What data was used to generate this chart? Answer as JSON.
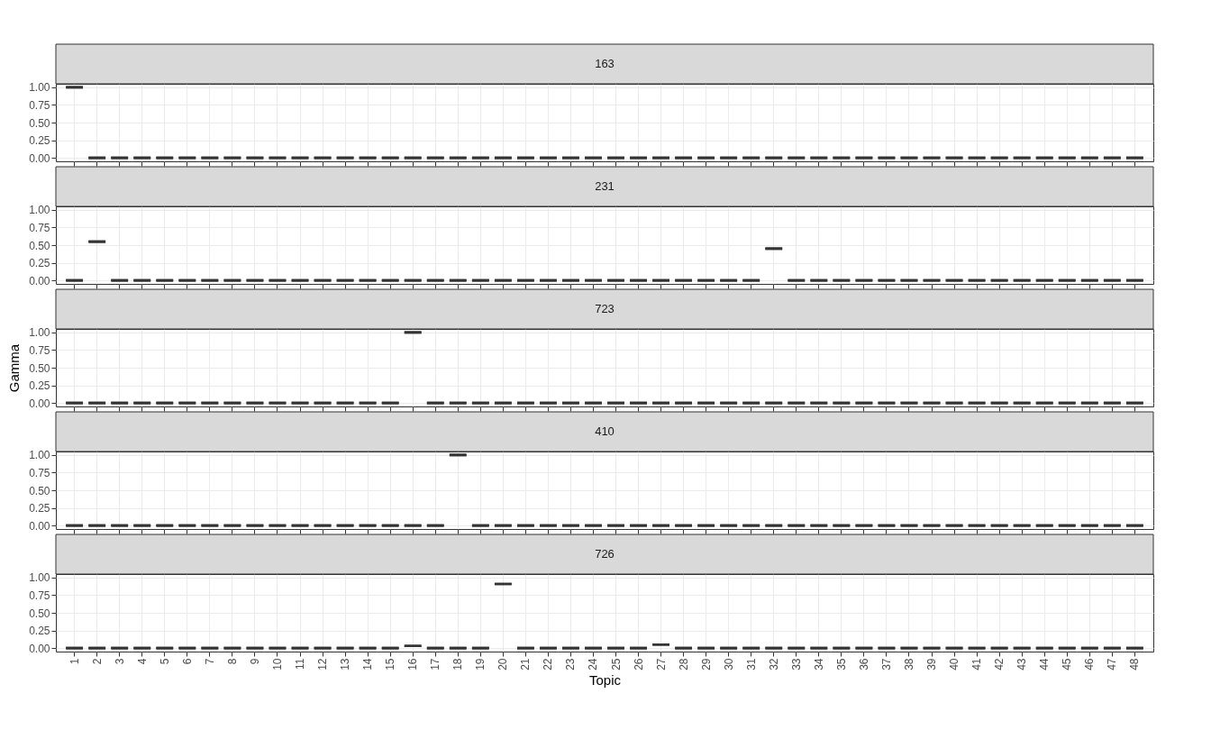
{
  "chart_data": [
    {
      "type": "box",
      "title": "163",
      "categories": [
        "1",
        "2",
        "3",
        "4",
        "5",
        "6",
        "7",
        "8",
        "9",
        "10",
        "11",
        "12",
        "13",
        "14",
        "15",
        "16",
        "17",
        "18",
        "19",
        "20",
        "21",
        "22",
        "23",
        "24",
        "25",
        "26",
        "27",
        "28",
        "29",
        "30",
        "31",
        "32",
        "33",
        "34",
        "35",
        "36",
        "37",
        "38",
        "39",
        "40",
        "41",
        "42",
        "43",
        "44",
        "45",
        "46",
        "47",
        "48"
      ],
      "ylim": [
        -0.05,
        1.05
      ],
      "yticks": [
        {
          "value": 0,
          "label": "0.00"
        },
        {
          "value": 0.25,
          "label": "0.25"
        },
        {
          "value": 0.5,
          "label": "0.50"
        },
        {
          "value": 0.75,
          "label": "0.75"
        },
        {
          "value": 1,
          "label": "1.00"
        }
      ],
      "grid": true,
      "tick_labels": "y",
      "boxes": [
        {
          "low": 1,
          "q1": 1,
          "median": 1,
          "q3": 1,
          "high": 1
        },
        {
          "low": 0,
          "q1": 0,
          "median": 0,
          "q3": 0,
          "high": 0
        },
        {
          "low": 0,
          "q1": 0,
          "median": 0,
          "q3": 0,
          "high": 0
        },
        {
          "low": 0,
          "q1": 0,
          "median": 0,
          "q3": 0,
          "high": 0
        },
        {
          "low": 0,
          "q1": 0,
          "median": 0,
          "q3": 0,
          "high": 0
        },
        {
          "low": 0,
          "q1": 0,
          "median": 0,
          "q3": 0,
          "high": 0
        },
        {
          "low": 0,
          "q1": 0,
          "median": 0,
          "q3": 0,
          "high": 0
        },
        {
          "low": 0,
          "q1": 0,
          "median": 0,
          "q3": 0,
          "high": 0
        },
        {
          "low": 0,
          "q1": 0,
          "median": 0,
          "q3": 0,
          "high": 0
        },
        {
          "low": 0,
          "q1": 0,
          "median": 0,
          "q3": 0,
          "high": 0
        },
        {
          "low": 0,
          "q1": 0,
          "median": 0,
          "q3": 0,
          "high": 0
        },
        {
          "low": 0,
          "q1": 0,
          "median": 0,
          "q3": 0,
          "high": 0
        },
        {
          "low": 0,
          "q1": 0,
          "median": 0,
          "q3": 0,
          "high": 0
        },
        {
          "low": 0,
          "q1": 0,
          "median": 0,
          "q3": 0,
          "high": 0
        },
        {
          "low": 0,
          "q1": 0,
          "median": 0,
          "q3": 0,
          "high": 0
        },
        {
          "low": 0,
          "q1": 0,
          "median": 0,
          "q3": 0,
          "high": 0
        },
        {
          "low": 0,
          "q1": 0,
          "median": 0,
          "q3": 0,
          "high": 0
        },
        {
          "low": 0,
          "q1": 0,
          "median": 0,
          "q3": 0,
          "high": 0
        },
        {
          "low": 0,
          "q1": 0,
          "median": 0,
          "q3": 0,
          "high": 0
        },
        {
          "low": 0,
          "q1": 0,
          "median": 0,
          "q3": 0,
          "high": 0
        },
        {
          "low": 0,
          "q1": 0,
          "median": 0,
          "q3": 0,
          "high": 0
        },
        {
          "low": 0,
          "q1": 0,
          "median": 0,
          "q3": 0,
          "high": 0
        },
        {
          "low": 0,
          "q1": 0,
          "median": 0,
          "q3": 0,
          "high": 0
        },
        {
          "low": 0,
          "q1": 0,
          "median": 0,
          "q3": 0,
          "high": 0
        },
        {
          "low": 0,
          "q1": 0,
          "median": 0,
          "q3": 0,
          "high": 0
        },
        {
          "low": 0,
          "q1": 0,
          "median": 0,
          "q3": 0,
          "high": 0
        },
        {
          "low": 0,
          "q1": 0,
          "median": 0,
          "q3": 0,
          "high": 0
        },
        {
          "low": 0,
          "q1": 0,
          "median": 0,
          "q3": 0,
          "high": 0
        },
        {
          "low": 0,
          "q1": 0,
          "median": 0,
          "q3": 0,
          "high": 0
        },
        {
          "low": 0,
          "q1": 0,
          "median": 0,
          "q3": 0,
          "high": 0
        },
        {
          "low": 0,
          "q1": 0,
          "median": 0,
          "q3": 0,
          "high": 0
        },
        {
          "low": 0,
          "q1": 0,
          "median": 0,
          "q3": 0,
          "high": 0
        },
        {
          "low": 0,
          "q1": 0,
          "median": 0,
          "q3": 0,
          "high": 0
        },
        {
          "low": 0,
          "q1": 0,
          "median": 0,
          "q3": 0,
          "high": 0
        },
        {
          "low": 0,
          "q1": 0,
          "median": 0,
          "q3": 0,
          "high": 0
        },
        {
          "low": 0,
          "q1": 0,
          "median": 0,
          "q3": 0,
          "high": 0
        },
        {
          "low": 0,
          "q1": 0,
          "median": 0,
          "q3": 0,
          "high": 0
        },
        {
          "low": 0,
          "q1": 0,
          "median": 0,
          "q3": 0,
          "high": 0
        },
        {
          "low": 0,
          "q1": 0,
          "median": 0,
          "q3": 0,
          "high": 0
        },
        {
          "low": 0,
          "q1": 0,
          "median": 0,
          "q3": 0,
          "high": 0
        },
        {
          "low": 0,
          "q1": 0,
          "median": 0,
          "q3": 0,
          "high": 0
        },
        {
          "low": 0,
          "q1": 0,
          "median": 0,
          "q3": 0,
          "high": 0
        },
        {
          "low": 0,
          "q1": 0,
          "median": 0,
          "q3": 0,
          "high": 0
        },
        {
          "low": 0,
          "q1": 0,
          "median": 0,
          "q3": 0,
          "high": 0
        },
        {
          "low": 0,
          "q1": 0,
          "median": 0,
          "q3": 0,
          "high": 0
        },
        {
          "low": 0,
          "q1": 0,
          "median": 0,
          "q3": 0,
          "high": 0
        },
        {
          "low": 0,
          "q1": 0,
          "median": 0,
          "q3": 0,
          "high": 0
        },
        {
          "low": 0,
          "q1": 0,
          "median": 0,
          "q3": 0,
          "high": 0
        }
      ]
    },
    {
      "type": "box",
      "title": "231",
      "categories": [
        "1",
        "2",
        "3",
        "4",
        "5",
        "6",
        "7",
        "8",
        "9",
        "10",
        "11",
        "12",
        "13",
        "14",
        "15",
        "16",
        "17",
        "18",
        "19",
        "20",
        "21",
        "22",
        "23",
        "24",
        "25",
        "26",
        "27",
        "28",
        "29",
        "30",
        "31",
        "32",
        "33",
        "34",
        "35",
        "36",
        "37",
        "38",
        "39",
        "40",
        "41",
        "42",
        "43",
        "44",
        "45",
        "46",
        "47",
        "48"
      ],
      "ylim": [
        -0.05,
        1.05
      ],
      "yticks": [
        {
          "value": 0,
          "label": "0.00"
        },
        {
          "value": 0.25,
          "label": "0.25"
        },
        {
          "value": 0.5,
          "label": "0.50"
        },
        {
          "value": 0.75,
          "label": "0.75"
        },
        {
          "value": 1,
          "label": "1.00"
        }
      ],
      "grid": true,
      "tick_labels": "y",
      "boxes": [
        {
          "low": 0,
          "q1": 0,
          "median": 0,
          "q3": 0,
          "high": 0
        },
        {
          "low": 0.55,
          "q1": 0.55,
          "median": 0.55,
          "q3": 0.55,
          "high": 0.55
        },
        {
          "low": 0,
          "q1": 0,
          "median": 0,
          "q3": 0,
          "high": 0
        },
        {
          "low": 0,
          "q1": 0,
          "median": 0,
          "q3": 0,
          "high": 0
        },
        {
          "low": 0,
          "q1": 0,
          "median": 0,
          "q3": 0,
          "high": 0
        },
        {
          "low": 0,
          "q1": 0,
          "median": 0,
          "q3": 0,
          "high": 0
        },
        {
          "low": 0,
          "q1": 0,
          "median": 0,
          "q3": 0,
          "high": 0
        },
        {
          "low": 0,
          "q1": 0,
          "median": 0,
          "q3": 0,
          "high": 0
        },
        {
          "low": 0,
          "q1": 0,
          "median": 0,
          "q3": 0,
          "high": 0
        },
        {
          "low": 0,
          "q1": 0,
          "median": 0,
          "q3": 0,
          "high": 0
        },
        {
          "low": 0,
          "q1": 0,
          "median": 0,
          "q3": 0,
          "high": 0
        },
        {
          "low": 0,
          "q1": 0,
          "median": 0,
          "q3": 0,
          "high": 0
        },
        {
          "low": 0,
          "q1": 0,
          "median": 0,
          "q3": 0,
          "high": 0
        },
        {
          "low": 0,
          "q1": 0,
          "median": 0,
          "q3": 0,
          "high": 0
        },
        {
          "low": 0,
          "q1": 0,
          "median": 0,
          "q3": 0,
          "high": 0
        },
        {
          "low": 0,
          "q1": 0,
          "median": 0,
          "q3": 0,
          "high": 0
        },
        {
          "low": 0,
          "q1": 0,
          "median": 0,
          "q3": 0,
          "high": 0
        },
        {
          "low": 0,
          "q1": 0,
          "median": 0,
          "q3": 0,
          "high": 0
        },
        {
          "low": 0,
          "q1": 0,
          "median": 0,
          "q3": 0,
          "high": 0
        },
        {
          "low": 0,
          "q1": 0,
          "median": 0,
          "q3": 0,
          "high": 0
        },
        {
          "low": 0,
          "q1": 0,
          "median": 0,
          "q3": 0,
          "high": 0
        },
        {
          "low": 0,
          "q1": 0,
          "median": 0,
          "q3": 0,
          "high": 0
        },
        {
          "low": 0,
          "q1": 0,
          "median": 0,
          "q3": 0,
          "high": 0
        },
        {
          "low": 0,
          "q1": 0,
          "median": 0,
          "q3": 0,
          "high": 0
        },
        {
          "low": 0,
          "q1": 0,
          "median": 0,
          "q3": 0,
          "high": 0
        },
        {
          "low": 0,
          "q1": 0,
          "median": 0,
          "q3": 0,
          "high": 0
        },
        {
          "low": 0,
          "q1": 0,
          "median": 0,
          "q3": 0,
          "high": 0
        },
        {
          "low": 0,
          "q1": 0,
          "median": 0,
          "q3": 0,
          "high": 0
        },
        {
          "low": 0,
          "q1": 0,
          "median": 0,
          "q3": 0,
          "high": 0
        },
        {
          "low": 0,
          "q1": 0,
          "median": 0,
          "q3": 0,
          "high": 0
        },
        {
          "low": 0,
          "q1": 0,
          "median": 0,
          "q3": 0,
          "high": 0
        },
        {
          "low": 0.45,
          "q1": 0.45,
          "median": 0.45,
          "q3": 0.45,
          "high": 0.45
        },
        {
          "low": 0,
          "q1": 0,
          "median": 0,
          "q3": 0,
          "high": 0
        },
        {
          "low": 0,
          "q1": 0,
          "median": 0,
          "q3": 0,
          "high": 0
        },
        {
          "low": 0,
          "q1": 0,
          "median": 0,
          "q3": 0,
          "high": 0
        },
        {
          "low": 0,
          "q1": 0,
          "median": 0,
          "q3": 0,
          "high": 0
        },
        {
          "low": 0,
          "q1": 0,
          "median": 0,
          "q3": 0,
          "high": 0
        },
        {
          "low": 0,
          "q1": 0,
          "median": 0,
          "q3": 0,
          "high": 0
        },
        {
          "low": 0,
          "q1": 0,
          "median": 0,
          "q3": 0,
          "high": 0
        },
        {
          "low": 0,
          "q1": 0,
          "median": 0,
          "q3": 0,
          "high": 0
        },
        {
          "low": 0,
          "q1": 0,
          "median": 0,
          "q3": 0,
          "high": 0
        },
        {
          "low": 0,
          "q1": 0,
          "median": 0,
          "q3": 0,
          "high": 0
        },
        {
          "low": 0,
          "q1": 0,
          "median": 0,
          "q3": 0,
          "high": 0
        },
        {
          "low": 0,
          "q1": 0,
          "median": 0,
          "q3": 0,
          "high": 0
        },
        {
          "low": 0,
          "q1": 0,
          "median": 0,
          "q3": 0,
          "high": 0
        },
        {
          "low": 0,
          "q1": 0,
          "median": 0,
          "q3": 0,
          "high": 0
        },
        {
          "low": 0,
          "q1": 0,
          "median": 0,
          "q3": 0,
          "high": 0
        },
        {
          "low": 0,
          "q1": 0,
          "median": 0,
          "q3": 0,
          "high": 0
        }
      ]
    },
    {
      "type": "box",
      "title": "723",
      "ylabel": "Gamma",
      "categories": [
        "1",
        "2",
        "3",
        "4",
        "5",
        "6",
        "7",
        "8",
        "9",
        "10",
        "11",
        "12",
        "13",
        "14",
        "15",
        "16",
        "17",
        "18",
        "19",
        "20",
        "21",
        "22",
        "23",
        "24",
        "25",
        "26",
        "27",
        "28",
        "29",
        "30",
        "31",
        "32",
        "33",
        "34",
        "35",
        "36",
        "37",
        "38",
        "39",
        "40",
        "41",
        "42",
        "43",
        "44",
        "45",
        "46",
        "47",
        "48"
      ],
      "ylim": [
        -0.05,
        1.05
      ],
      "yticks": [
        {
          "value": 0,
          "label": "0.00"
        },
        {
          "value": 0.25,
          "label": "0.25"
        },
        {
          "value": 0.5,
          "label": "0.50"
        },
        {
          "value": 0.75,
          "label": "0.75"
        },
        {
          "value": 1,
          "label": "1.00"
        }
      ],
      "grid": true,
      "tick_labels": "y",
      "boxes": [
        {
          "low": 0,
          "q1": 0,
          "median": 0,
          "q3": 0,
          "high": 0
        },
        {
          "low": 0,
          "q1": 0,
          "median": 0,
          "q3": 0,
          "high": 0
        },
        {
          "low": 0,
          "q1": 0,
          "median": 0,
          "q3": 0,
          "high": 0
        },
        {
          "low": 0,
          "q1": 0,
          "median": 0,
          "q3": 0,
          "high": 0
        },
        {
          "low": 0,
          "q1": 0,
          "median": 0,
          "q3": 0,
          "high": 0
        },
        {
          "low": 0,
          "q1": 0,
          "median": 0,
          "q3": 0,
          "high": 0
        },
        {
          "low": 0,
          "q1": 0,
          "median": 0,
          "q3": 0,
          "high": 0
        },
        {
          "low": 0,
          "q1": 0,
          "median": 0,
          "q3": 0,
          "high": 0
        },
        {
          "low": 0,
          "q1": 0,
          "median": 0,
          "q3": 0,
          "high": 0
        },
        {
          "low": 0,
          "q1": 0,
          "median": 0,
          "q3": 0,
          "high": 0
        },
        {
          "low": 0,
          "q1": 0,
          "median": 0,
          "q3": 0,
          "high": 0
        },
        {
          "low": 0,
          "q1": 0,
          "median": 0,
          "q3": 0,
          "high": 0
        },
        {
          "low": 0,
          "q1": 0,
          "median": 0,
          "q3": 0,
          "high": 0
        },
        {
          "low": 0,
          "q1": 0,
          "median": 0,
          "q3": 0,
          "high": 0
        },
        {
          "low": 0,
          "q1": 0,
          "median": 0,
          "q3": 0,
          "high": 0
        },
        {
          "low": 1,
          "q1": 1,
          "median": 1,
          "q3": 1,
          "high": 1
        },
        {
          "low": 0,
          "q1": 0,
          "median": 0,
          "q3": 0,
          "high": 0
        },
        {
          "low": 0,
          "q1": 0,
          "median": 0,
          "q3": 0,
          "high": 0
        },
        {
          "low": 0,
          "q1": 0,
          "median": 0,
          "q3": 0,
          "high": 0
        },
        {
          "low": 0,
          "q1": 0,
          "median": 0,
          "q3": 0,
          "high": 0
        },
        {
          "low": 0,
          "q1": 0,
          "median": 0,
          "q3": 0,
          "high": 0
        },
        {
          "low": 0,
          "q1": 0,
          "median": 0,
          "q3": 0,
          "high": 0
        },
        {
          "low": 0,
          "q1": 0,
          "median": 0,
          "q3": 0,
          "high": 0
        },
        {
          "low": 0,
          "q1": 0,
          "median": 0,
          "q3": 0,
          "high": 0
        },
        {
          "low": 0,
          "q1": 0,
          "median": 0,
          "q3": 0,
          "high": 0
        },
        {
          "low": 0,
          "q1": 0,
          "median": 0,
          "q3": 0,
          "high": 0
        },
        {
          "low": 0,
          "q1": 0,
          "median": 0,
          "q3": 0,
          "high": 0
        },
        {
          "low": 0,
          "q1": 0,
          "median": 0,
          "q3": 0,
          "high": 0
        },
        {
          "low": 0,
          "q1": 0,
          "median": 0,
          "q3": 0,
          "high": 0
        },
        {
          "low": 0,
          "q1": 0,
          "median": 0,
          "q3": 0,
          "high": 0
        },
        {
          "low": 0,
          "q1": 0,
          "median": 0,
          "q3": 0,
          "high": 0
        },
        {
          "low": 0,
          "q1": 0,
          "median": 0,
          "q3": 0,
          "high": 0
        },
        {
          "low": 0,
          "q1": 0,
          "median": 0,
          "q3": 0,
          "high": 0
        },
        {
          "low": 0,
          "q1": 0,
          "median": 0,
          "q3": 0,
          "high": 0
        },
        {
          "low": 0,
          "q1": 0,
          "median": 0,
          "q3": 0,
          "high": 0
        },
        {
          "low": 0,
          "q1": 0,
          "median": 0,
          "q3": 0,
          "high": 0
        },
        {
          "low": 0,
          "q1": 0,
          "median": 0,
          "q3": 0,
          "high": 0
        },
        {
          "low": 0,
          "q1": 0,
          "median": 0,
          "q3": 0,
          "high": 0
        },
        {
          "low": 0,
          "q1": 0,
          "median": 0,
          "q3": 0,
          "high": 0
        },
        {
          "low": 0,
          "q1": 0,
          "median": 0,
          "q3": 0,
          "high": 0
        },
        {
          "low": 0,
          "q1": 0,
          "median": 0,
          "q3": 0,
          "high": 0
        },
        {
          "low": 0,
          "q1": 0,
          "median": 0,
          "q3": 0,
          "high": 0
        },
        {
          "low": 0,
          "q1": 0,
          "median": 0,
          "q3": 0,
          "high": 0
        },
        {
          "low": 0,
          "q1": 0,
          "median": 0,
          "q3": 0,
          "high": 0
        },
        {
          "low": 0,
          "q1": 0,
          "median": 0,
          "q3": 0,
          "high": 0
        },
        {
          "low": 0,
          "q1": 0,
          "median": 0,
          "q3": 0,
          "high": 0
        },
        {
          "low": 0,
          "q1": 0,
          "median": 0,
          "q3": 0,
          "high": 0
        },
        {
          "low": 0,
          "q1": 0,
          "median": 0,
          "q3": 0,
          "high": 0
        }
      ]
    },
    {
      "type": "box",
      "title": "410",
      "categories": [
        "1",
        "2",
        "3",
        "4",
        "5",
        "6",
        "7",
        "8",
        "9",
        "10",
        "11",
        "12",
        "13",
        "14",
        "15",
        "16",
        "17",
        "18",
        "19",
        "20",
        "21",
        "22",
        "23",
        "24",
        "25",
        "26",
        "27",
        "28",
        "29",
        "30",
        "31",
        "32",
        "33",
        "34",
        "35",
        "36",
        "37",
        "38",
        "39",
        "40",
        "41",
        "42",
        "43",
        "44",
        "45",
        "46",
        "47",
        "48"
      ],
      "ylim": [
        -0.05,
        1.05
      ],
      "yticks": [
        {
          "value": 0,
          "label": "0.00"
        },
        {
          "value": 0.25,
          "label": "0.25"
        },
        {
          "value": 0.5,
          "label": "0.50"
        },
        {
          "value": 0.75,
          "label": "0.75"
        },
        {
          "value": 1,
          "label": "1.00"
        }
      ],
      "grid": true,
      "tick_labels": "y",
      "boxes": [
        {
          "low": 0,
          "q1": 0,
          "median": 0,
          "q3": 0,
          "high": 0
        },
        {
          "low": 0,
          "q1": 0,
          "median": 0,
          "q3": 0,
          "high": 0
        },
        {
          "low": 0,
          "q1": 0,
          "median": 0,
          "q3": 0,
          "high": 0
        },
        {
          "low": 0,
          "q1": 0,
          "median": 0,
          "q3": 0,
          "high": 0
        },
        {
          "low": 0,
          "q1": 0,
          "median": 0,
          "q3": 0,
          "high": 0
        },
        {
          "low": 0,
          "q1": 0,
          "median": 0,
          "q3": 0,
          "high": 0
        },
        {
          "low": 0,
          "q1": 0,
          "median": 0,
          "q3": 0,
          "high": 0
        },
        {
          "low": 0,
          "q1": 0,
          "median": 0,
          "q3": 0,
          "high": 0
        },
        {
          "low": 0,
          "q1": 0,
          "median": 0,
          "q3": 0,
          "high": 0
        },
        {
          "low": 0,
          "q1": 0,
          "median": 0,
          "q3": 0,
          "high": 0
        },
        {
          "low": 0,
          "q1": 0,
          "median": 0,
          "q3": 0,
          "high": 0
        },
        {
          "low": 0,
          "q1": 0,
          "median": 0,
          "q3": 0,
          "high": 0
        },
        {
          "low": 0,
          "q1": 0,
          "median": 0,
          "q3": 0,
          "high": 0
        },
        {
          "low": 0,
          "q1": 0,
          "median": 0,
          "q3": 0,
          "high": 0
        },
        {
          "low": 0,
          "q1": 0,
          "median": 0,
          "q3": 0,
          "high": 0
        },
        {
          "low": 0,
          "q1": 0,
          "median": 0,
          "q3": 0,
          "high": 0
        },
        {
          "low": 0,
          "q1": 0,
          "median": 0,
          "q3": 0,
          "high": 0
        },
        {
          "low": 1,
          "q1": 1,
          "median": 1,
          "q3": 1,
          "high": 1
        },
        {
          "low": 0,
          "q1": 0,
          "median": 0,
          "q3": 0,
          "high": 0
        },
        {
          "low": 0,
          "q1": 0,
          "median": 0,
          "q3": 0,
          "high": 0
        },
        {
          "low": 0,
          "q1": 0,
          "median": 0,
          "q3": 0,
          "high": 0
        },
        {
          "low": 0,
          "q1": 0,
          "median": 0,
          "q3": 0,
          "high": 0
        },
        {
          "low": 0,
          "q1": 0,
          "median": 0,
          "q3": 0,
          "high": 0
        },
        {
          "low": 0,
          "q1": 0,
          "median": 0,
          "q3": 0,
          "high": 0
        },
        {
          "low": 0,
          "q1": 0,
          "median": 0,
          "q3": 0,
          "high": 0
        },
        {
          "low": 0,
          "q1": 0,
          "median": 0,
          "q3": 0,
          "high": 0
        },
        {
          "low": 0,
          "q1": 0,
          "median": 0,
          "q3": 0,
          "high": 0
        },
        {
          "low": 0,
          "q1": 0,
          "median": 0,
          "q3": 0,
          "high": 0
        },
        {
          "low": 0,
          "q1": 0,
          "median": 0,
          "q3": 0,
          "high": 0
        },
        {
          "low": 0,
          "q1": 0,
          "median": 0,
          "q3": 0,
          "high": 0
        },
        {
          "low": 0,
          "q1": 0,
          "median": 0,
          "q3": 0,
          "high": 0
        },
        {
          "low": 0,
          "q1": 0,
          "median": 0,
          "q3": 0,
          "high": 0
        },
        {
          "low": 0,
          "q1": 0,
          "median": 0,
          "q3": 0,
          "high": 0
        },
        {
          "low": 0,
          "q1": 0,
          "median": 0,
          "q3": 0,
          "high": 0
        },
        {
          "low": 0,
          "q1": 0,
          "median": 0,
          "q3": 0,
          "high": 0
        },
        {
          "low": 0,
          "q1": 0,
          "median": 0,
          "q3": 0,
          "high": 0
        },
        {
          "low": 0,
          "q1": 0,
          "median": 0,
          "q3": 0,
          "high": 0
        },
        {
          "low": 0,
          "q1": 0,
          "median": 0,
          "q3": 0,
          "high": 0
        },
        {
          "low": 0,
          "q1": 0,
          "median": 0,
          "q3": 0,
          "high": 0
        },
        {
          "low": 0,
          "q1": 0,
          "median": 0,
          "q3": 0,
          "high": 0
        },
        {
          "low": 0,
          "q1": 0,
          "median": 0,
          "q3": 0,
          "high": 0
        },
        {
          "low": 0,
          "q1": 0,
          "median": 0,
          "q3": 0,
          "high": 0
        },
        {
          "low": 0,
          "q1": 0,
          "median": 0,
          "q3": 0,
          "high": 0
        },
        {
          "low": 0,
          "q1": 0,
          "median": 0,
          "q3": 0,
          "high": 0
        },
        {
          "low": 0,
          "q1": 0,
          "median": 0,
          "q3": 0,
          "high": 0
        },
        {
          "low": 0,
          "q1": 0,
          "median": 0,
          "q3": 0,
          "high": 0
        },
        {
          "low": 0,
          "q1": 0,
          "median": 0,
          "q3": 0,
          "high": 0
        },
        {
          "low": 0,
          "q1": 0,
          "median": 0,
          "q3": 0,
          "high": 0
        }
      ]
    },
    {
      "type": "box",
      "title": "726",
      "xlabel": "Topic",
      "categories": [
        "1",
        "2",
        "3",
        "4",
        "5",
        "6",
        "7",
        "8",
        "9",
        "10",
        "11",
        "12",
        "13",
        "14",
        "15",
        "16",
        "17",
        "18",
        "19",
        "20",
        "21",
        "22",
        "23",
        "24",
        "25",
        "26",
        "27",
        "28",
        "29",
        "30",
        "31",
        "32",
        "33",
        "34",
        "35",
        "36",
        "37",
        "38",
        "39",
        "40",
        "41",
        "42",
        "43",
        "44",
        "45",
        "46",
        "47",
        "48"
      ],
      "ylim": [
        -0.05,
        1.05
      ],
      "yticks": [
        {
          "value": 0,
          "label": "0.00"
        },
        {
          "value": 0.25,
          "label": "0.25"
        },
        {
          "value": 0.5,
          "label": "0.50"
        },
        {
          "value": 0.75,
          "label": "0.75"
        },
        {
          "value": 1,
          "label": "1.00"
        }
      ],
      "grid": true,
      "boxes": [
        {
          "low": 0,
          "q1": 0,
          "median": 0,
          "q3": 0,
          "high": 0
        },
        {
          "low": 0,
          "q1": 0,
          "median": 0,
          "q3": 0,
          "high": 0
        },
        {
          "low": 0,
          "q1": 0,
          "median": 0,
          "q3": 0,
          "high": 0
        },
        {
          "low": 0,
          "q1": 0,
          "median": 0,
          "q3": 0,
          "high": 0
        },
        {
          "low": 0,
          "q1": 0,
          "median": 0,
          "q3": 0,
          "high": 0
        },
        {
          "low": 0,
          "q1": 0,
          "median": 0,
          "q3": 0,
          "high": 0
        },
        {
          "low": 0,
          "q1": 0,
          "median": 0,
          "q3": 0,
          "high": 0
        },
        {
          "low": 0,
          "q1": 0,
          "median": 0,
          "q3": 0,
          "high": 0
        },
        {
          "low": 0,
          "q1": 0,
          "median": 0,
          "q3": 0,
          "high": 0
        },
        {
          "low": 0,
          "q1": 0,
          "median": 0,
          "q3": 0,
          "high": 0
        },
        {
          "low": 0,
          "q1": 0,
          "median": 0,
          "q3": 0,
          "high": 0
        },
        {
          "low": 0,
          "q1": 0,
          "median": 0,
          "q3": 0,
          "high": 0
        },
        {
          "low": 0,
          "q1": 0,
          "median": 0,
          "q3": 0,
          "high": 0
        },
        {
          "low": 0,
          "q1": 0,
          "median": 0,
          "q3": 0,
          "high": 0
        },
        {
          "low": 0,
          "q1": 0,
          "median": 0,
          "q3": 0,
          "high": 0
        },
        {
          "low": 0.03,
          "q1": 0.03,
          "median": 0.03,
          "q3": 0.03,
          "high": 0.03
        },
        {
          "low": 0,
          "q1": 0,
          "median": 0,
          "q3": 0,
          "high": 0
        },
        {
          "low": 0,
          "q1": 0,
          "median": 0,
          "q3": 0,
          "high": 0
        },
        {
          "low": 0,
          "q1": 0,
          "median": 0,
          "q3": 0,
          "high": 0
        },
        {
          "low": 0.91,
          "q1": 0.91,
          "median": 0.91,
          "q3": 0.91,
          "high": 0.91
        },
        {
          "low": 0,
          "q1": 0,
          "median": 0,
          "q3": 0,
          "high": 0
        },
        {
          "low": 0,
          "q1": 0,
          "median": 0,
          "q3": 0,
          "high": 0
        },
        {
          "low": 0,
          "q1": 0,
          "median": 0,
          "q3": 0,
          "high": 0
        },
        {
          "low": 0,
          "q1": 0,
          "median": 0,
          "q3": 0,
          "high": 0
        },
        {
          "low": 0,
          "q1": 0,
          "median": 0,
          "q3": 0,
          "high": 0
        },
        {
          "low": 0,
          "q1": 0,
          "median": 0,
          "q3": 0,
          "high": 0
        },
        {
          "low": 0.05,
          "q1": 0.05,
          "median": 0.05,
          "q3": 0.05,
          "high": 0.05
        },
        {
          "low": 0,
          "q1": 0,
          "median": 0,
          "q3": 0,
          "high": 0
        },
        {
          "low": 0,
          "q1": 0,
          "median": 0,
          "q3": 0,
          "high": 0
        },
        {
          "low": 0,
          "q1": 0,
          "median": 0,
          "q3": 0,
          "high": 0
        },
        {
          "low": 0,
          "q1": 0,
          "median": 0,
          "q3": 0,
          "high": 0
        },
        {
          "low": 0,
          "q1": 0,
          "median": 0,
          "q3": 0,
          "high": 0
        },
        {
          "low": 0,
          "q1": 0,
          "median": 0,
          "q3": 0,
          "high": 0
        },
        {
          "low": 0,
          "q1": 0,
          "median": 0,
          "q3": 0,
          "high": 0
        },
        {
          "low": 0,
          "q1": 0,
          "median": 0,
          "q3": 0,
          "high": 0
        },
        {
          "low": 0,
          "q1": 0,
          "median": 0,
          "q3": 0,
          "high": 0
        },
        {
          "low": 0,
          "q1": 0,
          "median": 0,
          "q3": 0,
          "high": 0
        },
        {
          "low": 0,
          "q1": 0,
          "median": 0,
          "q3": 0,
          "high": 0
        },
        {
          "low": 0,
          "q1": 0,
          "median": 0,
          "q3": 0,
          "high": 0
        },
        {
          "low": 0,
          "q1": 0,
          "median": 0,
          "q3": 0,
          "high": 0
        },
        {
          "low": 0,
          "q1": 0,
          "median": 0,
          "q3": 0,
          "high": 0
        },
        {
          "low": 0,
          "q1": 0,
          "median": 0,
          "q3": 0,
          "high": 0
        },
        {
          "low": 0,
          "q1": 0,
          "median": 0,
          "q3": 0,
          "high": 0
        },
        {
          "low": 0,
          "q1": 0,
          "median": 0,
          "q3": 0,
          "high": 0
        },
        {
          "low": 0,
          "q1": 0,
          "median": 0,
          "q3": 0,
          "high": 0
        },
        {
          "low": 0,
          "q1": 0,
          "median": 0,
          "q3": 0,
          "high": 0
        },
        {
          "low": 0,
          "q1": 0,
          "median": 0,
          "q3": 0,
          "high": 0
        },
        {
          "low": 0,
          "q1": 0,
          "median": 0,
          "q3": 0,
          "high": 0
        }
      ]
    }
  ]
}
